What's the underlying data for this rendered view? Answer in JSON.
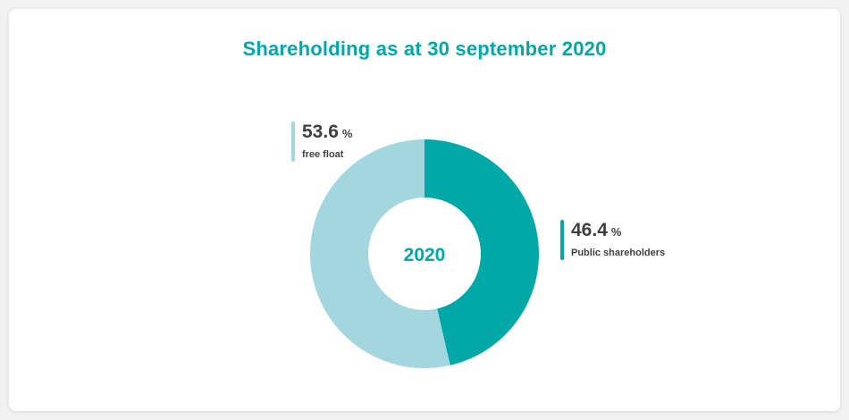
{
  "chart_data": {
    "type": "pie",
    "title": "Shareholding as at 30 september 2020",
    "center_label": "2020",
    "unit": "%",
    "series": [
      {
        "name": "Public shareholders",
        "value": 46.4,
        "value_text": "46.4",
        "color": "#00a8a8"
      },
      {
        "name": "free float",
        "value": 53.6,
        "value_text": "53.6",
        "color": "#a3d6de"
      }
    ]
  }
}
